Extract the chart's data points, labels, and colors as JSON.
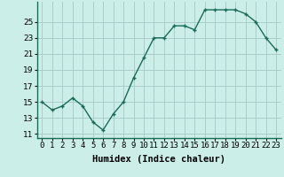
{
  "xlabel": "Humidex (Indice chaleur)",
  "x": [
    0,
    1,
    2,
    3,
    4,
    5,
    6,
    7,
    8,
    9,
    10,
    11,
    12,
    13,
    14,
    15,
    16,
    17,
    18,
    19,
    20,
    21,
    22,
    23
  ],
  "y": [
    15,
    14,
    14.5,
    15.5,
    14.5,
    12.5,
    11.5,
    13.5,
    15,
    18,
    20.5,
    23,
    23,
    24.5,
    24.5,
    24,
    26.5,
    26.5,
    26.5,
    26.5,
    26,
    25,
    23,
    21.5
  ],
  "line_color": "#1a6b5a",
  "marker": "+",
  "marker_size": 3.5,
  "marker_lw": 1.0,
  "bg_color": "#cceee8",
  "grid_color": "#aacccc",
  "ylim": [
    10.5,
    27.5
  ],
  "yticks": [
    11,
    13,
    15,
    17,
    19,
    21,
    23,
    25
  ],
  "xtick_labels": [
    "0",
    "1",
    "2",
    "3",
    "4",
    "5",
    "6",
    "7",
    "8",
    "9",
    "10",
    "11",
    "12",
    "13",
    "14",
    "15",
    "16",
    "17",
    "18",
    "19",
    "20",
    "21",
    "22",
    "23"
  ],
  "tick_fontsize": 6.5,
  "xlabel_fontsize": 7.5
}
